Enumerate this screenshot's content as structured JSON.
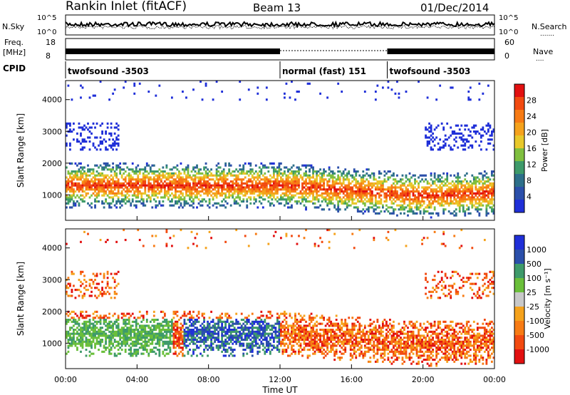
{
  "header": {
    "station": "Rankin Inlet (fitACF)",
    "beam": "Beam 13",
    "date": "01/Dec/2014"
  },
  "noise_panel": {
    "left_label": "N.Sky",
    "left_ticks": [
      "10^5",
      "10^0"
    ],
    "right_ticks": [
      "10^5",
      "10^0"
    ],
    "right_label": "N.Search"
  },
  "freq_panel": {
    "left_label_1": "Freq.",
    "left_label_2": "[MHz]",
    "left_ticks": [
      "18",
      "8"
    ],
    "right_ticks": [
      "60",
      "0"
    ],
    "right_label": "Nave"
  },
  "cpid": {
    "label": "CPID",
    "segments": [
      {
        "name": "twofsound -3503",
        "start_hr": 0,
        "end_hr": 12
      },
      {
        "name": "normal (fast) 151",
        "start_hr": 12,
        "end_hr": 18
      },
      {
        "name": "twofsound -3503",
        "start_hr": 18,
        "end_hr": 24
      }
    ]
  },
  "chart_data": [
    {
      "type": "heatmap",
      "name": "power",
      "ylabel": "Slant Range [km]",
      "yticks": [
        1000,
        2000,
        3000,
        4000
      ],
      "ylim": [
        200,
        4600
      ],
      "xlim": [
        0,
        24
      ],
      "colorbar": {
        "label": "Power [dB]",
        "ticks": [
          "28",
          "24",
          "20",
          "16",
          "12",
          "8",
          "4"
        ],
        "colors": [
          "#e21010",
          "#f24a10",
          "#f77b14",
          "#f5a21c",
          "#e8c82a",
          "#7fbf3f",
          "#3e9a6a",
          "#2d6f8a",
          "#2b4faa",
          "#1f2fd8"
        ]
      }
    },
    {
      "type": "heatmap",
      "name": "velocity",
      "ylabel": "Slant Range [km]",
      "yticks": [
        1000,
        2000,
        3000,
        4000
      ],
      "ylim": [
        200,
        4600
      ],
      "xlim": [
        0,
        24
      ],
      "colorbar": {
        "label": "Velocity [m s⁻¹]",
        "ticks": [
          "1000",
          "500",
          "100",
          "25",
          "-25",
          "-100",
          "-500",
          "-1000"
        ],
        "colors": [
          "#1f2fd8",
          "#2b4faa",
          "#3e9a6a",
          "#6abf3a",
          "#c8c8c8",
          "#f5a21c",
          "#f77b14",
          "#f24a10",
          "#e21010"
        ]
      }
    }
  ],
  "x_axis": {
    "ticks": [
      "00:00",
      "04:00",
      "08:00",
      "12:00",
      "16:00",
      "20:00",
      "00:00"
    ],
    "label": "Time UT"
  }
}
